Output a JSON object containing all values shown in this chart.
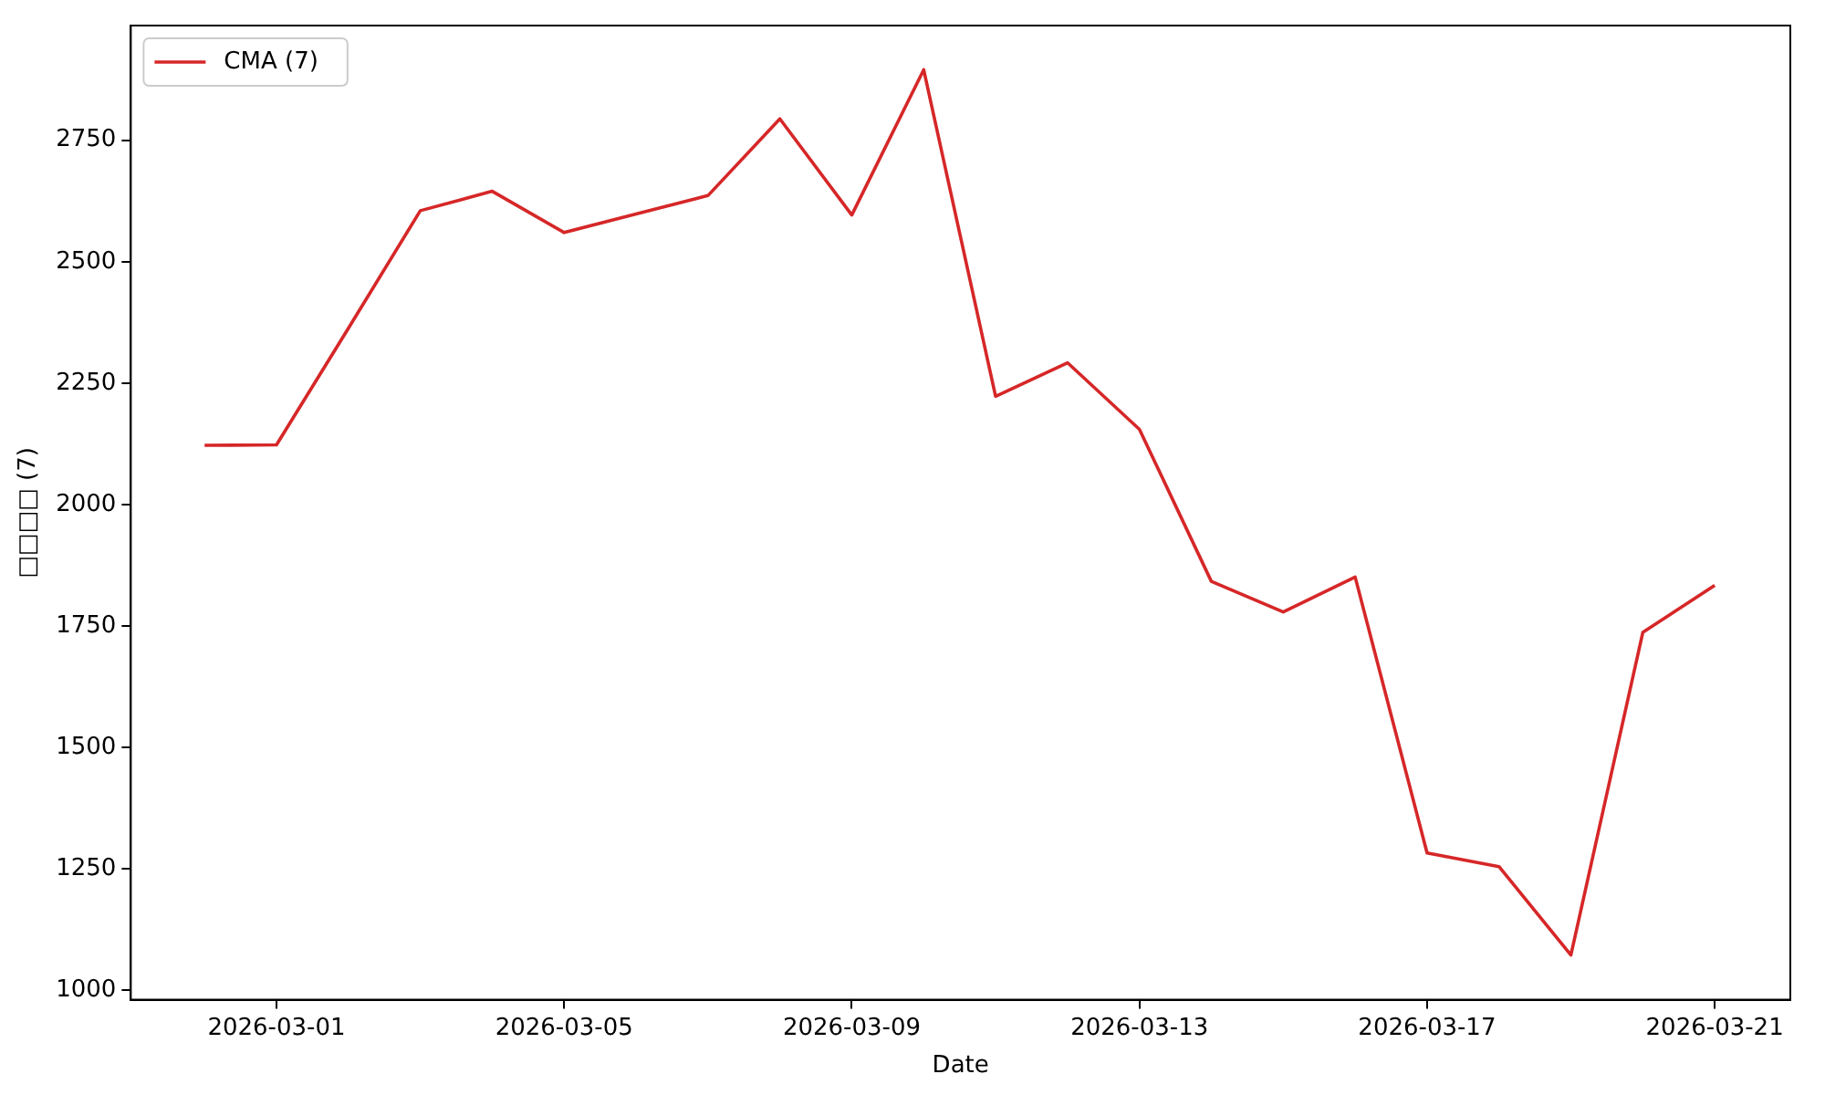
{
  "chart_data": {
    "type": "line",
    "ylabel": "□□□□ (7)",
    "xlabel": "Date",
    "x": [
      "2026-02-28",
      "2026-03-01",
      "2026-03-02",
      "2026-03-03",
      "2026-03-04",
      "2026-03-05",
      "2026-03-06",
      "2026-03-07",
      "2026-03-08",
      "2026-03-09",
      "2026-03-10",
      "2026-03-11",
      "2026-03-12",
      "2026-03-13",
      "2026-03-14",
      "2026-03-15",
      "2026-03-16",
      "2026-03-17",
      "2026-03-18",
      "2026-03-19",
      "2026-03-20",
      "2026-03-21"
    ],
    "series": [
      {
        "name": "CMA (7)",
        "color": "#d62728",
        "values": [
          2122,
          2123,
          2363,
          2605,
          2645,
          2560,
          2598,
          2636,
          2794,
          2596,
          2895,
          2223,
          2292,
          2155,
          1842,
          1779,
          1851,
          1283,
          1255,
          1073,
          1737,
          1834
        ]
      }
    ],
    "xlim": [
      "2026-02-26T23:23",
      "2026-03-22T01:14"
    ],
    "xticks": [
      "2026-03-01",
      "2026-03-05",
      "2026-03-09",
      "2026-03-13",
      "2026-03-17",
      "2026-03-21"
    ],
    "ylim": [
      981,
      2986
    ],
    "yticks": [
      1000,
      1250,
      1500,
      1750,
      2000,
      2250,
      2500,
      2750
    ],
    "legend": "top left",
    "grid": false,
    "marker": "none",
    "line_style": "solid"
  }
}
